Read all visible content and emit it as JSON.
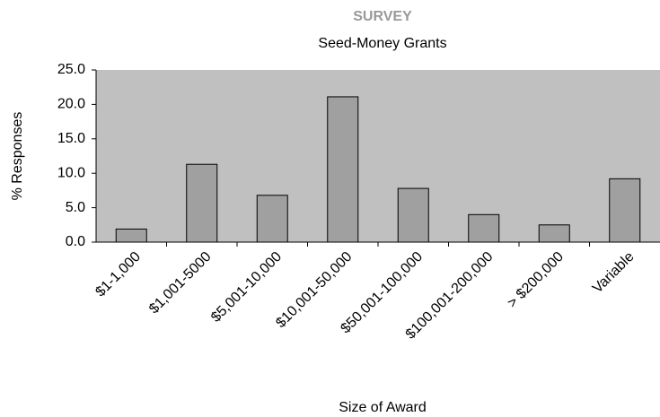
{
  "chart_data": {
    "type": "bar",
    "title": "SURVEY",
    "subtitle": "Seed-Money Grants",
    "x_label": "Size of Award",
    "y_label": "% Responses",
    "categories": [
      "$1-1,000",
      "$1,001-5000",
      "$5,001-10,000",
      "$10,001-50,000",
      "$50,001-100,000",
      "$100,001-200,000",
      "> $200,000",
      "Variable"
    ],
    "values": [
      1.9,
      11.3,
      6.8,
      21.1,
      7.8,
      4.0,
      2.5,
      9.2
    ],
    "color": "#a0a0a0",
    "background": "#c0c0c0",
    "ylim": [
      0,
      25
    ],
    "yticks": [
      {
        "value": 0,
        "label": "0.0"
      },
      {
        "value": 5,
        "label": "5.0"
      },
      {
        "value": 10,
        "label": "10.0"
      },
      {
        "value": 15,
        "label": "15.0"
      },
      {
        "value": 20,
        "label": "20.0"
      },
      {
        "value": 25,
        "label": "25.0"
      }
    ],
    "grid": false
  }
}
